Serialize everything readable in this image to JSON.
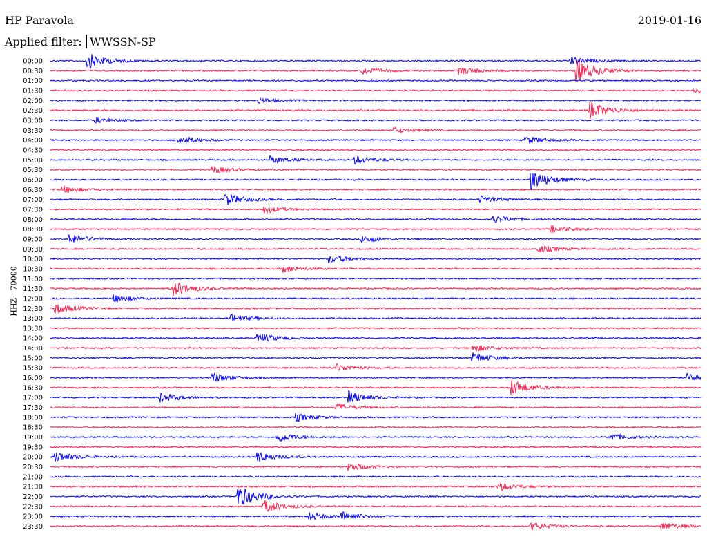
{
  "header": {
    "station": "HP Paravola",
    "date": "2019-01-16",
    "filter_label": "Applied filter:",
    "filter_value": "WWSSN-SP"
  },
  "axis": {
    "channel_label": "HHZ - 70000"
  },
  "colors": {
    "trace_a": "#0000ff",
    "trace_b": "#ff1a4a",
    "text": "#000000",
    "background": "#ffffff"
  },
  "chart_data": {
    "type": "line",
    "title": "HP Paravola",
    "subtitle": "Applied filter: WWSSN-SP",
    "ylabel": "HHZ - 70000",
    "xlabel": "",
    "grid": false,
    "legend": "none",
    "row_labels": [
      "00:00",
      "00:30",
      "01:00",
      "01:30",
      "02:00",
      "02:30",
      "03:00",
      "03:30",
      "04:00",
      "04:30",
      "05:00",
      "05:30",
      "06:00",
      "06:30",
      "07:00",
      "07:30",
      "08:00",
      "08:30",
      "09:00",
      "09:30",
      "10:00",
      "10:30",
      "11:00",
      "11:30",
      "12:00",
      "12:30",
      "13:00",
      "13:30",
      "14:00",
      "14:30",
      "15:00",
      "15:30",
      "16:00",
      "16:30",
      "17:00",
      "17:30",
      "18:00",
      "18:30",
      "19:00",
      "19:30",
      "20:00",
      "20:30",
      "21:00",
      "21:30",
      "22:00",
      "22:30",
      "23:00",
      "23:30"
    ],
    "row_colors": [
      "blue",
      "red"
    ],
    "events": [
      {
        "row": "00:00",
        "pos": 0.06,
        "amp": 6
      },
      {
        "row": "00:00",
        "pos": 0.8,
        "amp": 3
      },
      {
        "row": "00:30",
        "pos": 0.48,
        "amp": 3
      },
      {
        "row": "00:30",
        "pos": 0.63,
        "amp": 3
      },
      {
        "row": "00:30",
        "pos": 0.81,
        "amp": 9
      },
      {
        "row": "01:30",
        "pos": 0.99,
        "amp": 2
      },
      {
        "row": "02:00",
        "pos": 0.32,
        "amp": 2
      },
      {
        "row": "02:30",
        "pos": 0.83,
        "amp": 7
      },
      {
        "row": "03:00",
        "pos": 0.07,
        "amp": 2
      },
      {
        "row": "03:30",
        "pos": 0.53,
        "amp": 2
      },
      {
        "row": "04:00",
        "pos": 0.2,
        "amp": 3
      },
      {
        "row": "04:00",
        "pos": 0.73,
        "amp": 3
      },
      {
        "row": "05:00",
        "pos": 0.34,
        "amp": 3
      },
      {
        "row": "05:00",
        "pos": 0.47,
        "amp": 3
      },
      {
        "row": "05:30",
        "pos": 0.25,
        "amp": 3
      },
      {
        "row": "06:00",
        "pos": 0.74,
        "amp": 8
      },
      {
        "row": "06:30",
        "pos": 0.02,
        "amp": 3
      },
      {
        "row": "07:00",
        "pos": 0.27,
        "amp": 5
      },
      {
        "row": "07:00",
        "pos": 0.66,
        "amp": 3
      },
      {
        "row": "07:30",
        "pos": 0.33,
        "amp": 3
      },
      {
        "row": "08:00",
        "pos": 0.68,
        "amp": 3
      },
      {
        "row": "08:30",
        "pos": 0.77,
        "amp": 3
      },
      {
        "row": "09:00",
        "pos": 0.03,
        "amp": 4
      },
      {
        "row": "09:00",
        "pos": 0.48,
        "amp": 3
      },
      {
        "row": "09:30",
        "pos": 0.75,
        "amp": 3
      },
      {
        "row": "10:00",
        "pos": 0.43,
        "amp": 3
      },
      {
        "row": "10:30",
        "pos": 0.36,
        "amp": 3
      },
      {
        "row": "11:30",
        "pos": 0.19,
        "amp": 6
      },
      {
        "row": "12:00",
        "pos": 0.1,
        "amp": 3
      },
      {
        "row": "12:30",
        "pos": 0.01,
        "amp": 4
      },
      {
        "row": "13:00",
        "pos": 0.28,
        "amp": 3
      },
      {
        "row": "14:00",
        "pos": 0.32,
        "amp": 4
      },
      {
        "row": "14:30",
        "pos": 0.65,
        "amp": 3
      },
      {
        "row": "15:00",
        "pos": 0.65,
        "amp": 4
      },
      {
        "row": "15:30",
        "pos": 0.44,
        "amp": 3
      },
      {
        "row": "16:00",
        "pos": 0.25,
        "amp": 4
      },
      {
        "row": "16:00",
        "pos": 0.98,
        "amp": 3
      },
      {
        "row": "16:30",
        "pos": 0.71,
        "amp": 6
      },
      {
        "row": "17:00",
        "pos": 0.17,
        "amp": 4
      },
      {
        "row": "17:00",
        "pos": 0.46,
        "amp": 5
      },
      {
        "row": "17:30",
        "pos": 0.44,
        "amp": 3
      },
      {
        "row": "18:00",
        "pos": 0.38,
        "amp": 3
      },
      {
        "row": "19:00",
        "pos": 0.35,
        "amp": 4
      },
      {
        "row": "19:00",
        "pos": 0.86,
        "amp": 3
      },
      {
        "row": "20:00",
        "pos": 0.01,
        "amp": 4
      },
      {
        "row": "20:00",
        "pos": 0.32,
        "amp": 4
      },
      {
        "row": "20:30",
        "pos": 0.46,
        "amp": 3
      },
      {
        "row": "21:30",
        "pos": 0.69,
        "amp": 3
      },
      {
        "row": "22:00",
        "pos": 0.29,
        "amp": 9
      },
      {
        "row": "22:30",
        "pos": 0.33,
        "amp": 5
      },
      {
        "row": "23:00",
        "pos": 0.4,
        "amp": 3
      },
      {
        "row": "23:00",
        "pos": 0.45,
        "amp": 3
      },
      {
        "row": "23:30",
        "pos": 0.74,
        "amp": 3
      },
      {
        "row": "23:30",
        "pos": 0.94,
        "amp": 3
      }
    ]
  }
}
